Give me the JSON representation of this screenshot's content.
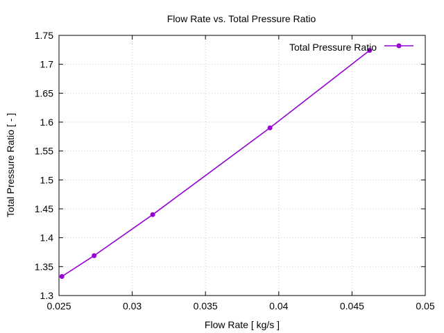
{
  "chart_data": {
    "type": "line",
    "title": "Flow Rate vs. Total Pressure Ratio",
    "xlabel": "Flow Rate [ kg/s ]",
    "ylabel": "Total Pressure Ratio [ - ]",
    "xlim": [
      0.025,
      0.05
    ],
    "ylim": [
      1.3,
      1.75
    ],
    "xticks": [
      0.025,
      0.03,
      0.035,
      0.04,
      0.045,
      0.05
    ],
    "xtick_labels": [
      "0.025",
      "0.03",
      "0.035",
      "0.04",
      "0.045",
      "0.05"
    ],
    "yticks": [
      1.3,
      1.35,
      1.4,
      1.45,
      1.5,
      1.55,
      1.6,
      1.65,
      1.7,
      1.75
    ],
    "ytick_labels": [
      "1.3",
      "1.35",
      "1.4",
      "1.45",
      "1.5",
      "1.55",
      "1.6",
      "1.65",
      "1.7",
      "1.75"
    ],
    "grid": true,
    "legend_position": "top-right",
    "series": [
      {
        "name": "Total Pressure Ratio",
        "color": "#9400d3",
        "x": [
          0.0252,
          0.0274,
          0.0314,
          0.0394,
          0.0462
        ],
        "y": [
          1.333,
          1.369,
          1.44,
          1.59,
          1.724
        ]
      }
    ]
  }
}
